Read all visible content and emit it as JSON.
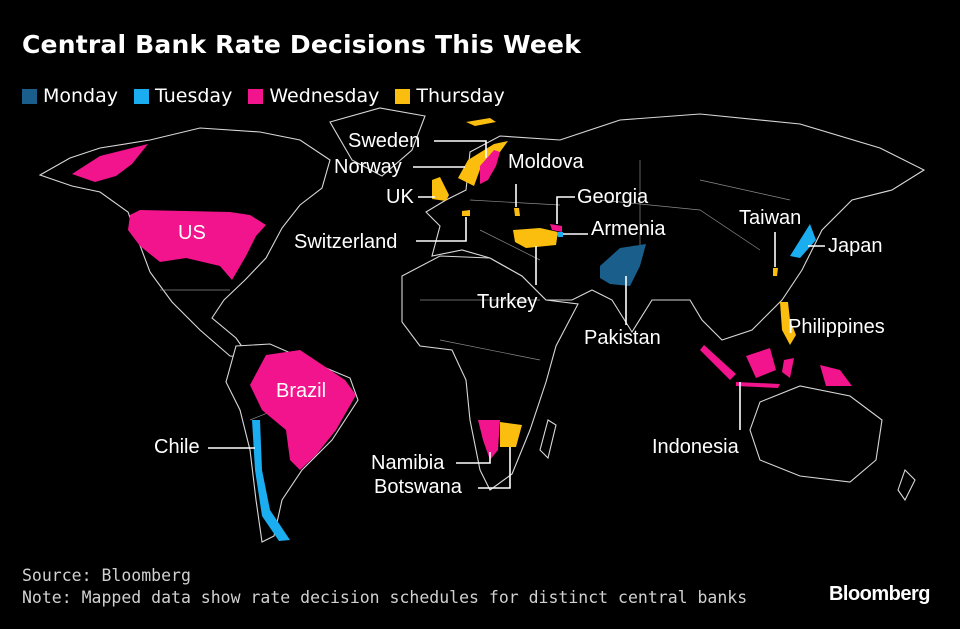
{
  "title": "Central Bank Rate Decisions This Week",
  "legend": [
    {
      "label": "Monday",
      "color": "#1a5f8c"
    },
    {
      "label": "Tuesday",
      "color": "#1aaef0"
    },
    {
      "label": "Wednesday",
      "color": "#f2148c"
    },
    {
      "label": "Thursday",
      "color": "#fbbd0e"
    }
  ],
  "countries": {
    "US": "Wednesday",
    "Brazil": "Wednesday",
    "Chile": "Tuesday",
    "Sweden": "Wednesday",
    "Norway": "Thursday",
    "UK": "Thursday",
    "Switzerland": "Thursday",
    "Moldova": "Thursday",
    "Georgia": "Wednesday",
    "Armenia": "Tuesday",
    "Turkey": "Thursday",
    "Pakistan": "Monday",
    "Taiwan": "Thursday",
    "Japan": "Tuesday",
    "Philippines": "Thursday",
    "Indonesia": "Wednesday",
    "Namibia": "Wednesday",
    "Botswana": "Thursday"
  },
  "labels": {
    "us": "US",
    "brazil": "Brazil",
    "chile": "Chile",
    "sweden": "Sweden",
    "norway": "Norway",
    "uk": "UK",
    "switzerland": "Switzerland",
    "moldova": "Moldova",
    "georgia": "Georgia",
    "armenia": "Armenia",
    "turkey": "Turkey",
    "pakistan": "Pakistan",
    "taiwan": "Taiwan",
    "japan": "Japan",
    "philippines": "Philippines",
    "indonesia": "Indonesia",
    "namibia": "Namibia",
    "botswana": "Botswana"
  },
  "footer": {
    "source": "Source: Bloomberg",
    "note": "Note: Mapped data show rate decision schedules for distinct central banks"
  },
  "logo": "Bloomberg"
}
